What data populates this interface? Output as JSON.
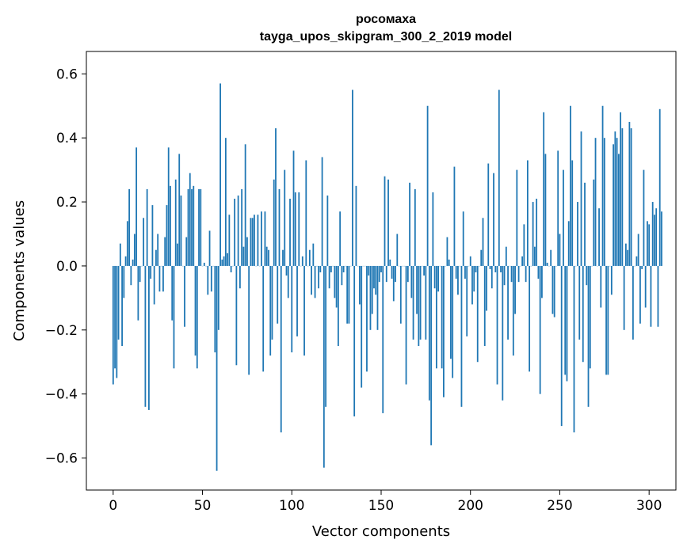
{
  "chart_data": {
    "type": "bar",
    "title": "росомаха",
    "subtitle": "tayga_upos_skipgram_300_2_2019 model",
    "xlabel": "Vector components",
    "ylabel": "Components values",
    "xlim": [
      -15,
      315
    ],
    "ylim": [
      -0.7,
      0.67
    ],
    "xticks": [
      0,
      50,
      100,
      150,
      200,
      250,
      300
    ],
    "xtick_labels": [
      "0",
      "50",
      "100",
      "150",
      "200",
      "250",
      "300"
    ],
    "yticks": [
      -0.6,
      -0.4,
      -0.2,
      0.0,
      0.2,
      0.4,
      0.6
    ],
    "ytick_labels": [
      "−0.6",
      "−0.4",
      "−0.2",
      "0.0",
      "0.2",
      "0.4",
      "0.6"
    ],
    "grid": false,
    "bar_color": "#1f77b4",
    "values": [
      -0.37,
      -0.32,
      -0.35,
      -0.23,
      0.07,
      -0.25,
      -0.1,
      0.03,
      0.14,
      0.24,
      -0.06,
      0.02,
      0.1,
      0.37,
      -0.17,
      -0.05,
      0.0,
      0.15,
      -0.44,
      0.24,
      -0.45,
      -0.04,
      0.19,
      -0.12,
      0.05,
      0.1,
      -0.08,
      0.0,
      -0.08,
      0.09,
      0.19,
      0.37,
      0.25,
      -0.17,
      -0.32,
      0.27,
      0.07,
      0.35,
      0.22,
      0.0,
      -0.19,
      0.09,
      0.24,
      0.29,
      0.24,
      0.25,
      -0.28,
      -0.32,
      0.24,
      0.24,
      0.0,
      0.01,
      0.0,
      -0.09,
      0.11,
      -0.08,
      0.0,
      -0.27,
      -0.64,
      -0.2,
      0.57,
      0.02,
      0.03,
      0.4,
      0.04,
      0.16,
      -0.02,
      0.0,
      0.21,
      -0.31,
      0.22,
      -0.07,
      0.24,
      0.06,
      0.38,
      0.09,
      -0.34,
      0.15,
      0.15,
      0.16,
      0.0,
      0.16,
      0.0,
      0.17,
      -0.33,
      0.17,
      0.06,
      0.05,
      -0.28,
      -0.23,
      0.27,
      0.43,
      -0.18,
      0.24,
      -0.52,
      0.05,
      0.3,
      -0.03,
      -0.1,
      0.21,
      -0.27,
      0.36,
      0.23,
      -0.22,
      0.23,
      0.0,
      0.03,
      -0.28,
      0.33,
      0.0,
      0.05,
      -0.09,
      0.07,
      -0.1,
      0.0,
      -0.07,
      -0.02,
      0.34,
      -0.63,
      -0.44,
      0.22,
      -0.07,
      -0.02,
      0.0,
      -0.1,
      -0.13,
      -0.25,
      0.17,
      -0.06,
      -0.02,
      0.0,
      -0.18,
      -0.18,
      0.0,
      0.55,
      -0.47,
      0.25,
      0.0,
      -0.12,
      -0.38,
      0.0,
      0.0,
      -0.33,
      -0.03,
      -0.2,
      -0.15,
      -0.07,
      -0.09,
      -0.2,
      -0.05,
      -0.02,
      -0.46,
      0.28,
      -0.05,
      0.27,
      0.02,
      -0.04,
      -0.11,
      -0.05,
      0.1,
      0.0,
      -0.18,
      0.0,
      0.0,
      -0.37,
      -0.05,
      0.26,
      -0.1,
      -0.23,
      0.24,
      -0.15,
      -0.25,
      -0.23,
      0.0,
      -0.03,
      -0.23,
      0.5,
      -0.42,
      -0.56,
      0.23,
      -0.07,
      -0.32,
      -0.08,
      0.0,
      -0.32,
      -0.41,
      0.0,
      0.09,
      0.02,
      -0.29,
      -0.35,
      0.31,
      -0.04,
      -0.09,
      0.0,
      -0.44,
      0.17,
      -0.04,
      -0.22,
      0.0,
      0.03,
      -0.12,
      -0.08,
      -0.02,
      -0.3,
      0.0,
      0.05,
      0.15,
      -0.25,
      -0.14,
      0.32,
      -0.01,
      -0.07,
      0.29,
      -0.02,
      -0.37,
      0.55,
      -0.02,
      -0.42,
      -0.06,
      0.06,
      -0.23,
      0.0,
      -0.05,
      -0.28,
      -0.15,
      0.3,
      -0.05,
      0.0,
      0.03,
      0.13,
      -0.05,
      0.33,
      -0.33,
      0.0,
      0.2,
      0.06,
      0.21,
      -0.04,
      -0.4,
      -0.1,
      0.48,
      0.35,
      0.01,
      0.0,
      0.05,
      -0.15,
      -0.16,
      0.0,
      0.36,
      0.1,
      -0.5,
      0.3,
      -0.34,
      -0.36,
      0.14,
      0.5,
      0.33,
      -0.52,
      0.0,
      0.2,
      -0.23,
      0.42,
      -0.3,
      0.26,
      -0.06,
      -0.44,
      -0.32,
      0.0,
      0.27,
      0.4,
      0.0,
      0.18,
      -0.13,
      0.5,
      0.4,
      -0.34,
      -0.34,
      0.0,
      -0.09,
      0.38,
      0.42,
      0.4,
      0.35,
      0.48,
      0.43,
      -0.2,
      0.07,
      0.05,
      0.45,
      0.43,
      -0.23,
      0.0,
      0.03,
      0.1,
      -0.18,
      -0.01,
      0.3,
      -0.13,
      0.14,
      0.13,
      -0.19,
      0.2,
      0.16,
      0.18,
      -0.19,
      0.49,
      0.17
    ]
  }
}
